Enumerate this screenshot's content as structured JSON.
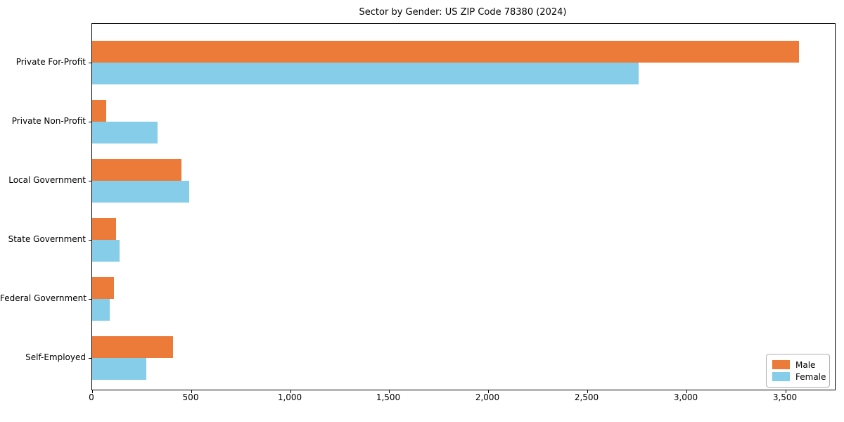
{
  "chart_data": {
    "type": "bar",
    "orientation": "horizontal",
    "title": "Sector by Gender: US ZIP Code 78380 (2024)",
    "categories": [
      "Private For-Profit",
      "Private Non-Profit",
      "Local Government",
      "State Government",
      "Federal Government",
      "Self-Employed"
    ],
    "series": [
      {
        "name": "Male",
        "color": "#ec7a39",
        "values": [
          3570,
          70,
          450,
          120,
          110,
          410
        ]
      },
      {
        "name": "Female",
        "color": "#85cde8",
        "values": [
          2760,
          330,
          490,
          140,
          90,
          275
        ]
      }
    ],
    "xlabel": "",
    "ylabel": "",
    "xlim": [
      0,
      3750
    ],
    "xticks": [
      0,
      500,
      1000,
      1500,
      2000,
      2500,
      3000,
      3500
    ],
    "xtick_labels": [
      "0",
      "500",
      "1,000",
      "1,500",
      "2,000",
      "2,500",
      "3,000",
      "3,500"
    ],
    "grid": false,
    "legend": {
      "position": "lower right",
      "labels": [
        "Male",
        "Female"
      ]
    }
  }
}
